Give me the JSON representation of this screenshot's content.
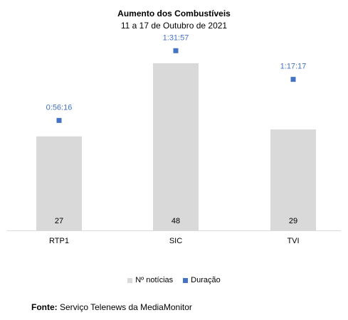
{
  "chart_data": {
    "type": "bar",
    "title": "Aumento dos Combustíveis",
    "subtitle": "11 a 17 de Outubro de 2021",
    "categories": [
      "RTP1",
      "SIC",
      "TVI"
    ],
    "series": [
      {
        "name": "Nº notícias",
        "kind": "bar",
        "color": "#d9d9d9",
        "values": [
          27,
          48,
          29
        ],
        "labels": [
          "27",
          "48",
          "29"
        ]
      },
      {
        "name": "Duração",
        "kind": "point",
        "color": "#4472c4",
        "values": [
          3376,
          5517,
          4637
        ],
        "labels": [
          "0:56:16",
          "1:31:57",
          "1:17:17"
        ]
      }
    ],
    "bar_ylim": [
      0,
      58
    ],
    "duration_ylim": [
      0,
      6200
    ],
    "legend": "bottom-center",
    "grid": false
  },
  "source": {
    "label": "Fonte:",
    "text": "Serviço Telenews da MediaMonitor"
  }
}
